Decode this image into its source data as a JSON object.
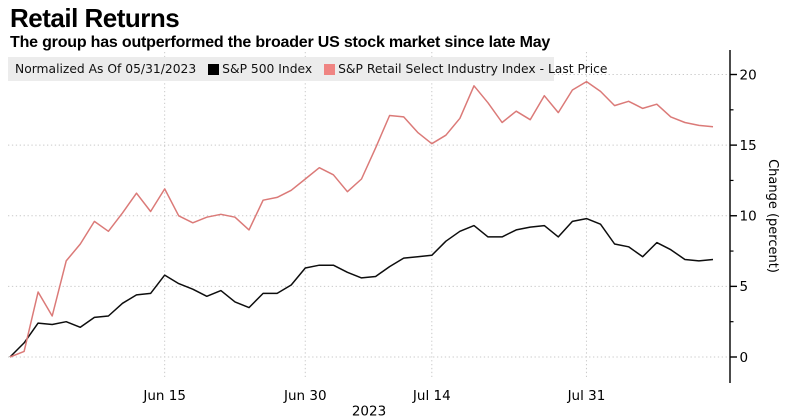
{
  "header": {
    "title": "Retail Returns",
    "subtitle": "The group has outperformed the broader US stock market since late May"
  },
  "legend": {
    "note": "Normalized As Of 05/31/2023",
    "items": [
      {
        "label": "S&P 500 Index",
        "color": "#000000"
      },
      {
        "label": "S&P Retail Select Industry Index - Last Price",
        "color": "#ef8482"
      }
    ]
  },
  "axes": {
    "ylabel": "Change (percent)",
    "year_label": "2023"
  },
  "chart_data": {
    "type": "line",
    "title": "Retail Returns",
    "ylabel": "Change (percent)",
    "year_label": "2023",
    "grid": "dotted",
    "legend_position": "top",
    "ylim": [
      0,
      20
    ],
    "yticks": [
      0,
      5,
      10,
      15,
      20
    ],
    "y_minor_ticks": [
      2.5,
      7.5,
      12.5,
      17.5
    ],
    "xticks": [
      {
        "label": "Jun 15",
        "index": 11
      },
      {
        "label": "Jun 30",
        "index": 21
      },
      {
        "label": "Jul 14",
        "index": 30
      },
      {
        "label": "Jul 31",
        "index": 41
      }
    ],
    "x": [
      "05/31",
      "06/01",
      "06/02",
      "06/05",
      "06/06",
      "06/07",
      "06/08",
      "06/09",
      "06/12",
      "06/13",
      "06/14",
      "06/15",
      "06/16",
      "06/20",
      "06/21",
      "06/22",
      "06/23",
      "06/26",
      "06/27",
      "06/28",
      "06/29",
      "06/30",
      "07/03",
      "07/05",
      "07/06",
      "07/07",
      "07/10",
      "07/11",
      "07/12",
      "07/13",
      "07/14",
      "07/17",
      "07/18",
      "07/19",
      "07/20",
      "07/21",
      "07/24",
      "07/25",
      "07/26",
      "07/27",
      "07/28",
      "07/31",
      "08/01",
      "08/02",
      "08/03",
      "08/04",
      "08/07",
      "08/08",
      "08/09",
      "08/10",
      "08/11"
    ],
    "series": [
      {
        "name": "S&P 500 Index",
        "color": "#0d0d0d",
        "values": [
          0,
          1.0,
          2.4,
          2.3,
          2.5,
          2.1,
          2.8,
          2.9,
          3.8,
          4.4,
          4.5,
          5.8,
          5.2,
          4.8,
          4.3,
          4.7,
          3.9,
          3.5,
          4.5,
          4.5,
          5.1,
          6.3,
          6.5,
          6.5,
          6.0,
          5.6,
          5.7,
          6.4,
          7.0,
          7.1,
          7.2,
          8.2,
          8.9,
          9.3,
          8.5,
          8.5,
          9.0,
          9.2,
          9.3,
          8.5,
          9.6,
          9.8,
          9.4,
          8.0,
          7.8,
          7.1,
          8.1,
          7.6,
          6.9,
          6.8,
          6.9
        ]
      },
      {
        "name": "S&P Retail Select Industry Index - Last Price",
        "color": "#db7a78",
        "values": [
          0,
          0.4,
          4.6,
          2.9,
          6.8,
          8.0,
          9.6,
          8.9,
          10.2,
          11.6,
          10.3,
          11.9,
          10.0,
          9.5,
          9.9,
          10.1,
          9.9,
          9.0,
          11.1,
          11.3,
          11.8,
          12.6,
          13.4,
          12.9,
          11.7,
          12.6,
          14.8,
          17.1,
          17.0,
          15.9,
          15.1,
          15.7,
          16.9,
          19.2,
          18.0,
          16.6,
          17.4,
          16.8,
          18.5,
          17.3,
          18.9,
          19.5,
          18.8,
          17.8,
          18.1,
          17.6,
          17.9,
          17.0,
          16.6,
          16.4,
          16.3
        ]
      }
    ]
  }
}
